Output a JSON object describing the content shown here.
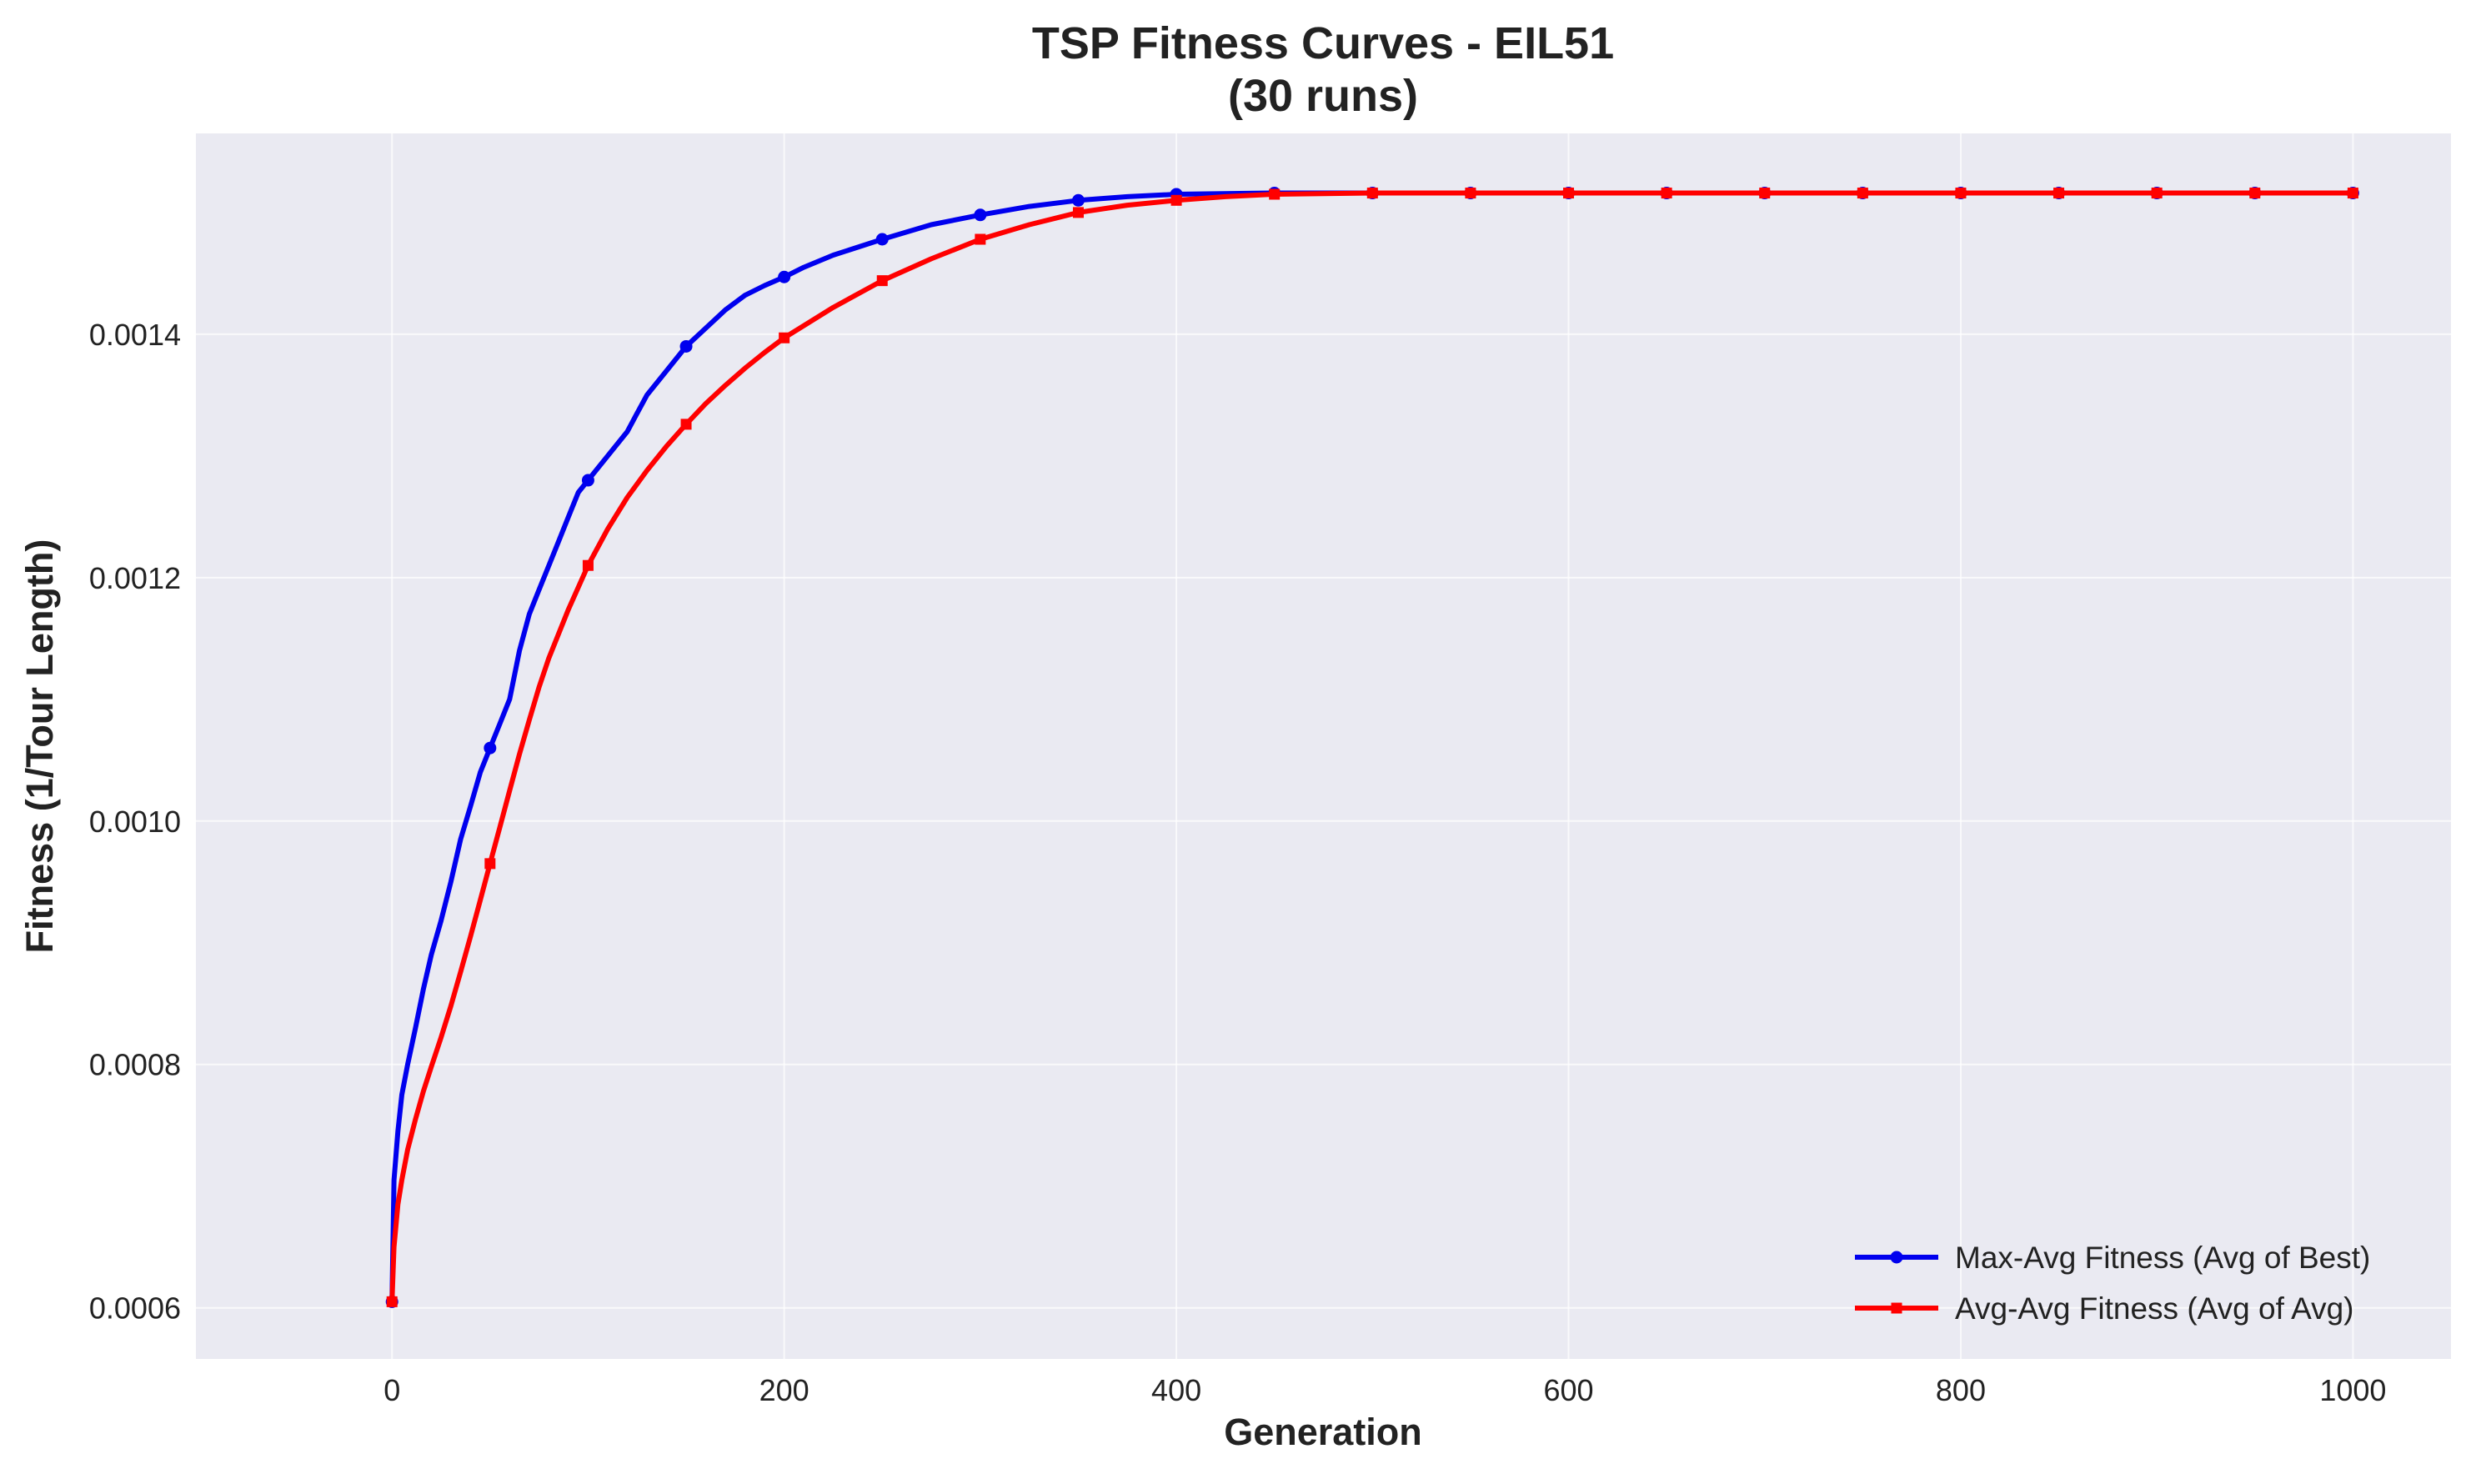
{
  "chart_data": {
    "type": "line",
    "title": "TSP Fitness Curves - EIL51",
    "subtitle": "(30 runs)",
    "xlabel": "Generation",
    "ylabel": "Fitness (1/Tour Length)",
    "xlim": [
      -100,
      1050
    ],
    "ylim": [
      0.000558,
      0.001565
    ],
    "xticks": [
      0,
      200,
      400,
      600,
      800,
      1000
    ],
    "xtick_labels": [
      "0",
      "200",
      "400",
      "600",
      "800",
      "1000"
    ],
    "yticks": [
      0.0006,
      0.0008,
      0.001,
      0.0012,
      0.0014
    ],
    "ytick_labels": [
      "0.0006",
      "0.0008",
      "0.0010",
      "0.0012",
      "0.0014"
    ],
    "grid": true,
    "legend_position": "lower-right",
    "background_color": "#eaeaf2",
    "series": [
      {
        "name": "Max-Avg Fitness (Avg of Best)",
        "color": "#0000ee",
        "marker": "circle",
        "x": [
          0,
          1,
          3,
          5,
          8,
          12,
          16,
          20,
          25,
          30,
          35,
          40,
          45,
          50,
          55,
          60,
          65,
          70,
          75,
          80,
          85,
          90,
          95,
          100,
          110,
          120,
          125,
          130,
          140,
          150,
          160,
          170,
          180,
          190,
          200,
          210,
          225,
          250,
          275,
          300,
          325,
          350,
          375,
          400,
          450,
          500,
          550,
          600,
          650,
          700,
          750,
          800,
          850,
          900,
          950,
          1000
        ],
        "y": [
          0.000605,
          0.000705,
          0.000745,
          0.000775,
          0.0008,
          0.00083,
          0.000862,
          0.00089,
          0.000918,
          0.00095,
          0.000985,
          0.001012,
          0.00104,
          0.00106,
          0.00108,
          0.0011,
          0.00114,
          0.00117,
          0.00119,
          0.00121,
          0.00123,
          0.00125,
          0.00127,
          0.00128,
          0.0013,
          0.00132,
          0.001335,
          0.00135,
          0.00137,
          0.00139,
          0.001405,
          0.00142,
          0.001432,
          0.00144,
          0.001447,
          0.001455,
          0.001465,
          0.001478,
          0.00149,
          0.001498,
          0.001505,
          0.00151,
          0.001513,
          0.001515,
          0.001516,
          0.001516,
          0.001516,
          0.001516,
          0.001516,
          0.001516,
          0.001516,
          0.001516,
          0.001516,
          0.001516,
          0.001516,
          0.001516
        ]
      },
      {
        "name": "Avg-Avg Fitness (Avg of Avg)",
        "color": "#ff0000",
        "marker": "square",
        "x": [
          0,
          1,
          3,
          5,
          8,
          12,
          16,
          20,
          25,
          30,
          35,
          40,
          45,
          50,
          55,
          60,
          65,
          70,
          75,
          80,
          90,
          100,
          110,
          120,
          130,
          140,
          150,
          160,
          170,
          180,
          190,
          200,
          225,
          250,
          275,
          300,
          325,
          350,
          375,
          400,
          425,
          450,
          500,
          550,
          600,
          650,
          700,
          750,
          800,
          850,
          900,
          950,
          1000
        ],
        "y": [
          0.000605,
          0.00065,
          0.000685,
          0.000705,
          0.00073,
          0.000755,
          0.000778,
          0.000798,
          0.000822,
          0.000848,
          0.000876,
          0.000905,
          0.000935,
          0.000965,
          0.000995,
          0.001025,
          0.001055,
          0.001083,
          0.00111,
          0.001134,
          0.001174,
          0.00121,
          0.00124,
          0.001266,
          0.001288,
          0.001308,
          0.001326,
          0.001343,
          0.001358,
          0.001372,
          0.001385,
          0.001397,
          0.001422,
          0.001444,
          0.001462,
          0.001478,
          0.00149,
          0.0015,
          0.001506,
          0.00151,
          0.001513,
          0.001515,
          0.001516,
          0.001516,
          0.001516,
          0.001516,
          0.001516,
          0.001516,
          0.001516,
          0.001516,
          0.001516,
          0.001516,
          0.001516
        ]
      }
    ]
  }
}
